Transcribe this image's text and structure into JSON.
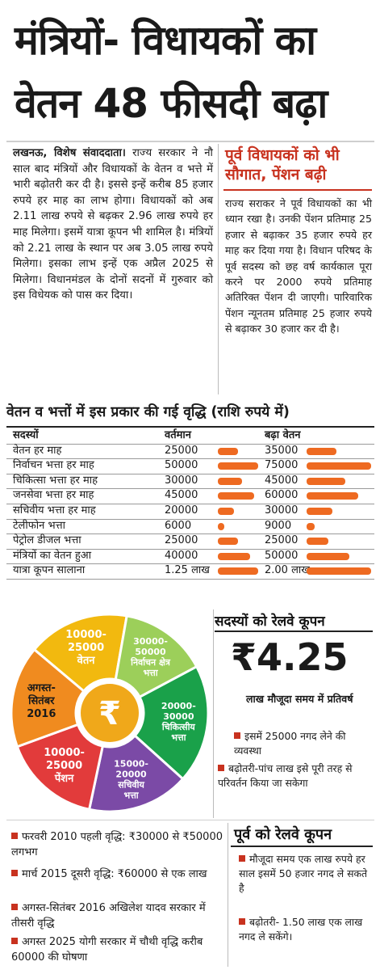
{
  "headline": {
    "line1": "मंत्रियों- विधायकों का",
    "line2": "वेतन 48 फीसदी बढ़ा"
  },
  "article": {
    "dateline": "लखनऊ, विशेष संवाददाता।",
    "body": "राज्य सरकार ने नौ साल बाद मंत्रियों और विधायकों के वेतन व भत्ते में भारी बढ़ोतरी कर दी है। इससे इन्हें करीब 85 हजार रुपये हर माह का लाभ होगा। विधायकों को अब 2.11 लाख रुपये से बढ़कर 2.96 लाख रुपये हर माह मिलेगा। इसमें यात्रा कूपन भी शामिल है। मंत्रियों को 2.21 लाख के स्थान पर अब 3.05 लाख रुपये मिलेगा। इसका लाभ इन्हें एक अप्रैल 2025 से मिलेगा। विधानमंडल के दोनों सदनों में गुरुवार को इस विधेयक को पास कर दिया।"
  },
  "sidebar": {
    "title": "पूर्व विधायकों को भी सौगात, पेंशन बढ़ी",
    "body": "राज्य सराकर ने पूर्व विधायकों का भी ध्यान रखा है। उनकी पेंशन प्रतिमाह 25 हजार से बढ़ाकर 35 हजार रुपये हर माह कर दिया गया है। विधान परिषद के पूर्व सदस्य को छह वर्ष कार्यकाल पूरा करने पर 2000 रुपये प्रतिमाह अतिरिक्त पेंशन दी जाएगी। पारिवारिक पेंशन न्यूनतम प्रतिमाह 25 हजार रुपये से बढ़ाकर 30 हजार कर दी है।"
  },
  "table": {
    "title": "वेतन व भत्तों में इस प्रकार की गई वृद्धि (राशि रुपये में)",
    "headers": [
      "सदस्यों",
      "वर्तमान",
      "बढ़ा वेतन"
    ],
    "rows": [
      [
        "वेतन हर माह",
        "25000",
        "35000"
      ],
      [
        "निर्वाचन भत्ता हर माह",
        "50000",
        "75000"
      ],
      [
        "चिकित्सा भत्ता हर माह",
        "30000",
        "45000"
      ],
      [
        "जनसेवा भत्ता हर माह",
        "45000",
        "60000"
      ],
      [
        "सचिवीय भत्ता हर माह",
        "20000",
        "30000"
      ],
      [
        "टेलीफोन भत्ता",
        "6000",
        "9000"
      ],
      [
        "पेट्रोल डीजल भत्ता",
        "25000",
        "25000"
      ],
      [
        "मंत्रियों का वेतन हुआ",
        "40000",
        "50000"
      ],
      [
        "यात्रा कूपन सालाना",
        "1.25 लाख",
        "2.00 लाख"
      ]
    ],
    "bar_color": "#ee6a21"
  },
  "pie": {
    "center_symbol": "₹",
    "segments": [
      {
        "text": "10000-\n25000\nवेतन",
        "color": "#f2b90f"
      },
      {
        "text": "30000-\n50000\nनिर्वाचन क्षेत्र\nभत्ता",
        "color": "#9ccf5a"
      },
      {
        "text": "20000-\n30000\nचिकित्सीय\nभत्ता",
        "color": "#1aa14a"
      },
      {
        "text": "15000-\n20000\nसचिवीय\nभत्ता",
        "color": "#7b4aa6"
      },
      {
        "text": "10000-\n25000\nपेंशन",
        "color": "#e23b3b"
      },
      {
        "text": "अगस्त-\nसितंबर\n2016",
        "color": "#f08b1f"
      }
    ],
    "center_color": "#f0a81a"
  },
  "rail": {
    "title": "सदस्यों को रेलवे कूपन",
    "amount": "₹4.25",
    "amount_sub": "लाख मौजूदा समय में प्रतिवर्ष",
    "bullets": [
      "इसमें 25000 नगद लेने की व्यवस्था",
      "बढ़ोतरी-पांच लाख इसे पूरी तरह से परिवर्तन किया जा सकेगा"
    ]
  },
  "former_rail": {
    "title": "पूर्व को रेलवे कूपन",
    "bullets": [
      "मौजूदा समय एक लाख रुपये हर साल इसमें 50 हजार नगद ले सकते है",
      "बढ़ोतरी- 1.50 लाख एक लाख नगद ले सकेंगे।"
    ]
  },
  "history": {
    "bullets": [
      "फरवरी 2010 पहली वृद्धि: ₹30000 से ₹50000 लगभग",
      "मार्च 2015 दूसरी वृद्धि: ₹60000 से एक लाख",
      "अगस्त-सितंबर 2016 अखिलेश यादव सरकार में तीसरी वृद्धि",
      "अगस्त 2025 योगी सरकार में चौथी वृद्धि करीब 60000 की घोषणा"
    ]
  },
  "accent_color": "#c8321f"
}
